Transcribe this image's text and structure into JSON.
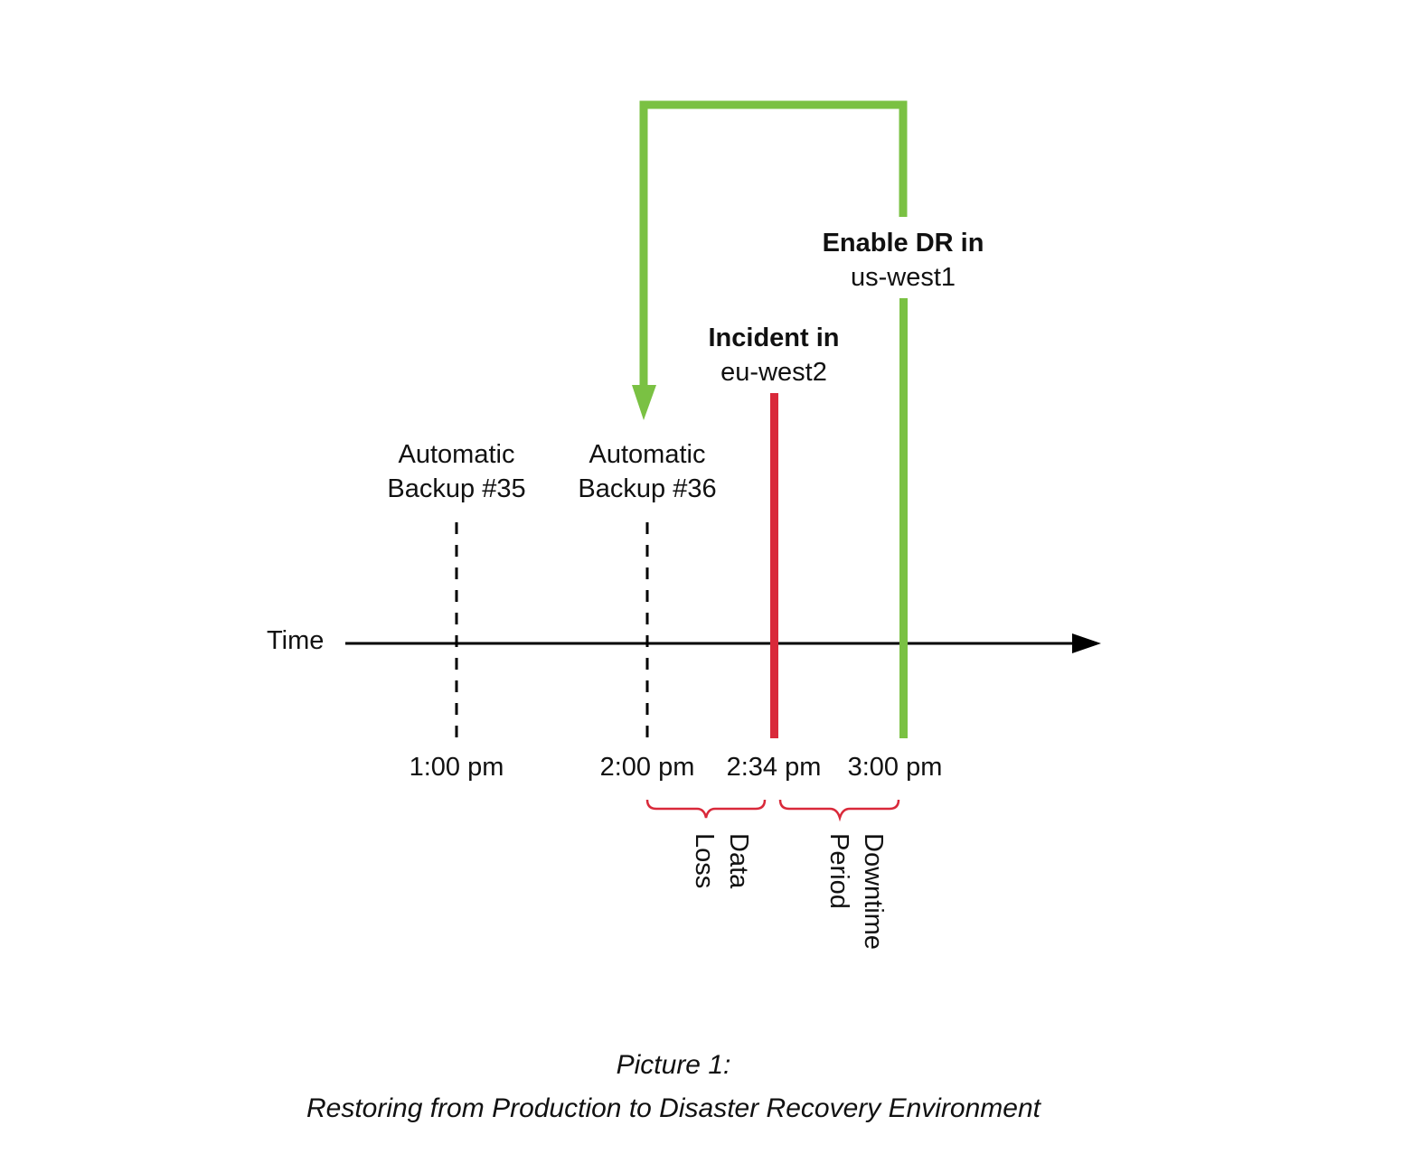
{
  "axis": {
    "label": "Time"
  },
  "events": {
    "backup35": {
      "line1": "Automatic",
      "line2": "Backup #35",
      "time": "1:00 pm"
    },
    "backup36": {
      "line1": "Automatic",
      "line2": "Backup #36",
      "time": "2:00 pm"
    },
    "incident": {
      "line1": "Incident in",
      "line2": "eu-west2",
      "time": "2:34 pm"
    },
    "dr": {
      "line1": "Enable DR in",
      "line2": "us-west1",
      "time": "3:00 pm"
    }
  },
  "braces": {
    "data_loss": {
      "line1": "Data",
      "line2": "Loss"
    },
    "downtime": {
      "line1": "Downtime",
      "line2": "Period"
    }
  },
  "caption": {
    "line1": "Picture 1:",
    "line2": "Restoring from Production to Disaster Recovery Environment"
  },
  "colors": {
    "incident": "#d9293a",
    "dr": "#7ac143",
    "brace": "#d9293a",
    "axis": "#000000"
  }
}
